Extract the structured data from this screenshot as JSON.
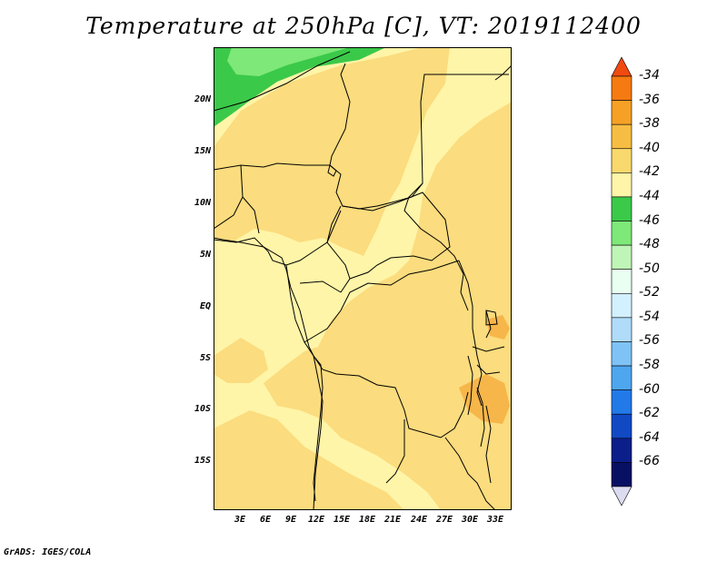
{
  "title": "Temperature at 250hPa [C], VT: 2019112400",
  "footer": "GrADS: IGES/COLA",
  "map": {
    "lon_range_deg_east": [
      0,
      35
    ],
    "lat_range_deg": [
      -20,
      25
    ],
    "y_tick_labels": [
      "20N",
      "15N",
      "10N",
      "5N",
      "EQ",
      "5S",
      "10S",
      "15S"
    ],
    "x_tick_labels": [
      "3E",
      "6E",
      "9E",
      "12E",
      "15E",
      "18E",
      "21E",
      "24E",
      "27E",
      "30E",
      "33E"
    ],
    "colors": {
      "lvl_-42_-40": "#fff5a8",
      "lvl_-40_-38": "#fbdc7e",
      "lvl_-38_-36": "#f6b64a",
      "lvl_-46_-44": "#3bc94a",
      "lvl_-48_-46": "#7ee879"
    }
  },
  "colorbar": {
    "labels": [
      "-34",
      "-36",
      "-38",
      "-40",
      "-42",
      "-44",
      "-46",
      "-48",
      "-50",
      "-52",
      "-54",
      "-56",
      "-58",
      "-60",
      "-62",
      "-64",
      "-66"
    ],
    "colors_top_to_bottom": [
      "#f04a10",
      "#f57a12",
      "#f6a126",
      "#f7bd43",
      "#f9d96d",
      "#fff5a8",
      "#3bc94a",
      "#7ee879",
      "#bff5b6",
      "#e8fff1",
      "#d3f0ff",
      "#b0dcfa",
      "#7fc2f6",
      "#4ea6ef",
      "#2279e8",
      "#1149c4",
      "#0c1e8a",
      "#081064",
      "#dcdcf0"
    ]
  }
}
